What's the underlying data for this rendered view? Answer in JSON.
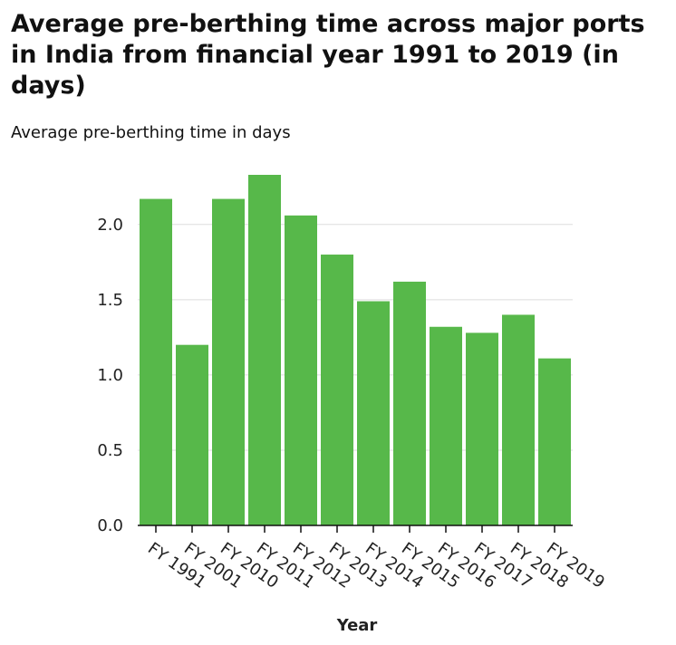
{
  "chart_data": {
    "type": "bar",
    "title": "Average pre-berthing time across major ports in India from financial year 1991 to 2019 (in days)",
    "ylabel": "Average pre-berthing time in days",
    "xlabel": "Year",
    "categories": [
      "FY 1991",
      "FY 2001",
      "FY 2010",
      "FY 2011",
      "FY 2012",
      "FY 2013",
      "FY 2014",
      "FY 2015",
      "FY 2016",
      "FY 2017",
      "FY 2018",
      "FY 2019"
    ],
    "values": [
      2.17,
      1.2,
      2.17,
      2.33,
      2.06,
      1.8,
      1.49,
      1.62,
      1.32,
      1.28,
      1.4,
      1.11
    ],
    "ylim": [
      0,
      2.33
    ],
    "yticks": [
      "0.0",
      "0.5",
      "1.0",
      "1.5",
      "2.0"
    ],
    "grid": true,
    "bar_color": "#57b84a",
    "grid_color": "#dddddd"
  }
}
